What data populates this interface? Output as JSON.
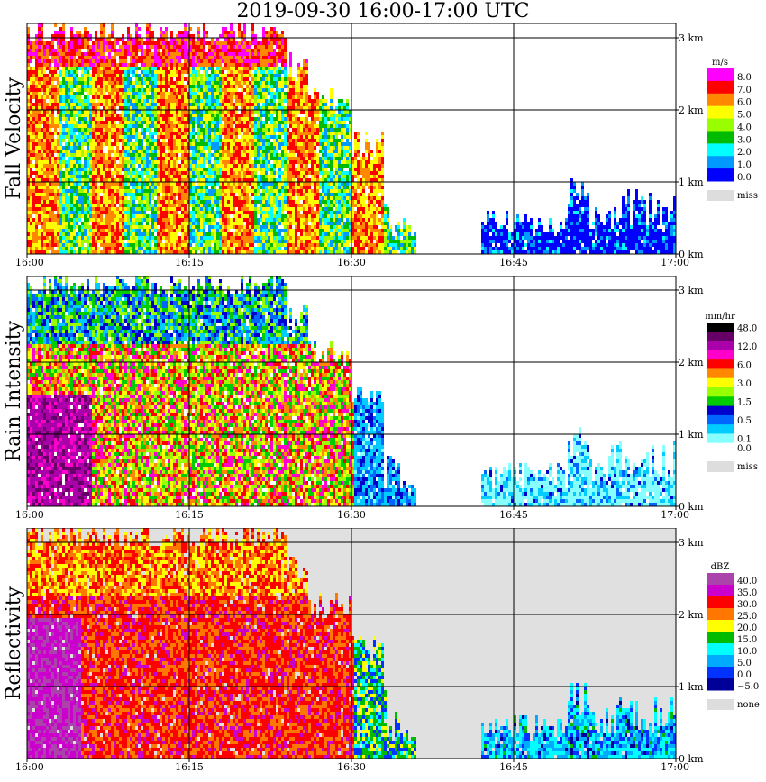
{
  "title": "2019-09-30   16:00-17:00 UTC",
  "time_ticks": [
    "16:00",
    "16:15",
    "16:30",
    "16:45",
    "17:00"
  ],
  "height_ticks": [
    "0 km",
    "1 km",
    "2 km",
    "3 km"
  ],
  "chart_data": [
    {
      "type": "heatmap",
      "ylabel": "Fall Velocity",
      "xlabel": "",
      "x_range": [
        "16:00",
        "17:00"
      ],
      "y_range_km": [
        0,
        3.2
      ],
      "legend_unit": "m/s",
      "legend": [
        {
          "label": "8.0",
          "color": "#ff00ff"
        },
        {
          "label": "7.0",
          "color": "#ff0000"
        },
        {
          "label": "6.0",
          "color": "#ff8800"
        },
        {
          "label": "5.0",
          "color": "#ffff00"
        },
        {
          "label": "4.0",
          "color": "#99ff00"
        },
        {
          "label": "3.0",
          "color": "#00bb00"
        },
        {
          "label": "2.0",
          "color": "#00ffff"
        },
        {
          "label": "1.0",
          "color": "#0099ff"
        },
        {
          "label": "0.0",
          "color": "#0000ff"
        }
      ],
      "missing_label": "miss",
      "grid": true
    },
    {
      "type": "heatmap",
      "ylabel": "Rain Intensity",
      "xlabel": "",
      "x_range": [
        "16:00",
        "17:00"
      ],
      "y_range_km": [
        0,
        3.2
      ],
      "legend_unit": "mm/hr",
      "legend": [
        {
          "label": "48.0",
          "color": "#000000"
        },
        {
          "label": "",
          "color": "#660066"
        },
        {
          "label": "12.0",
          "color": "#aa00aa"
        },
        {
          "label": "",
          "color": "#ff00cc"
        },
        {
          "label": "6.0",
          "color": "#ff0000"
        },
        {
          "label": "",
          "color": "#ff8800"
        },
        {
          "label": "3.0",
          "color": "#ffff00"
        },
        {
          "label": "",
          "color": "#99ff00"
        },
        {
          "label": "1.5",
          "color": "#00cc00"
        },
        {
          "label": "",
          "color": "#0000cc"
        },
        {
          "label": "0.5",
          "color": "#0066ff"
        },
        {
          "label": "",
          "color": "#00ccff"
        },
        {
          "label": "0.1",
          "color": "#88ffff"
        },
        {
          "label": "0.0",
          "color": "#ffffff"
        }
      ],
      "missing_label": "miss",
      "grid": true
    },
    {
      "type": "heatmap",
      "ylabel": "Reflectivity",
      "xlabel": "",
      "x_range": [
        "16:00",
        "17:00"
      ],
      "y_range_km": [
        0,
        3.2
      ],
      "legend_unit": "dBZ",
      "legend": [
        {
          "label": "40.0",
          "color": "#aa44aa"
        },
        {
          "label": "35.0",
          "color": "#cc00cc"
        },
        {
          "label": "30.0",
          "color": "#ff0000"
        },
        {
          "label": "25.0",
          "color": "#ff7700"
        },
        {
          "label": "20.0",
          "color": "#ffff00"
        },
        {
          "label": "15.0",
          "color": "#00bb00"
        },
        {
          "label": "10.0",
          "color": "#00ffff"
        },
        {
          "label": "5.0",
          "color": "#00aaff"
        },
        {
          "label": "0.0",
          "color": "#0033ff"
        },
        {
          "label": "−5.0",
          "color": "#000099"
        }
      ],
      "missing_label": "none",
      "grid": true
    }
  ]
}
